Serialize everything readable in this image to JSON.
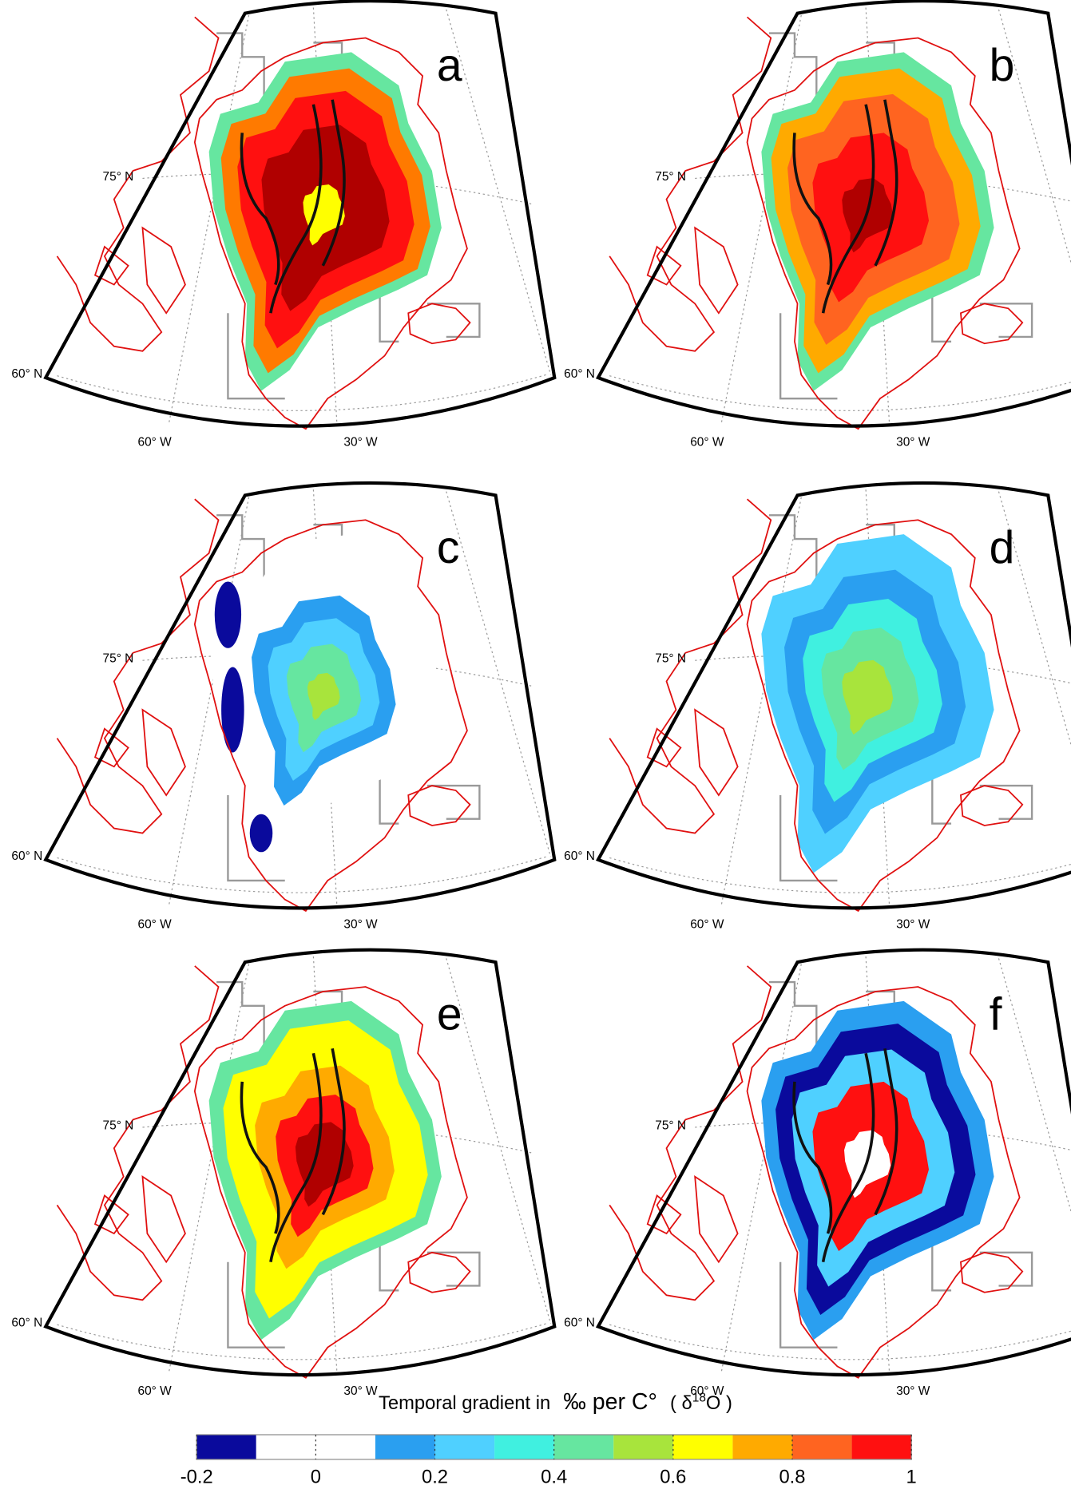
{
  "panels": [
    {
      "label": "a",
      "lat_labels": [
        "75° N",
        "60° N"
      ],
      "lon_labels": [
        "60° W",
        "30° W"
      ]
    },
    {
      "label": "b",
      "lat_labels": [
        "75° N",
        "60° N"
      ],
      "lon_labels": [
        "60° W",
        "30° W"
      ]
    },
    {
      "label": "c",
      "lat_labels": [
        "75° N",
        "60° N"
      ],
      "lon_labels": [
        "60° W",
        "30° W"
      ]
    },
    {
      "label": "d",
      "lat_labels": [
        "75° N",
        "60° N"
      ],
      "lon_labels": [
        "60° W",
        "30° W"
      ]
    },
    {
      "label": "e",
      "lat_labels": [
        "75° N",
        "60° N"
      ],
      "lon_labels": [
        "60° W",
        "30° W"
      ]
    },
    {
      "label": "f",
      "lat_labels": [
        "75° N",
        "60° N"
      ],
      "lon_labels": [
        "60° W",
        "30° W"
      ]
    }
  ],
  "colorbar": {
    "title": "Temporal gradient in",
    "unit": "‰ per C°",
    "quantity_prefix": "( δ",
    "quantity_sup": "18",
    "quantity_suffix": "O )",
    "range": [
      -0.2,
      1
    ],
    "bins": [
      -0.2,
      -0.1,
      0,
      0.1,
      0.2,
      0.3,
      0.4,
      0.5,
      0.6,
      0.7,
      0.8,
      0.9,
      1
    ],
    "colors": [
      "#0a0a9c",
      "#ffffff",
      "#ffffff",
      "#2a9ff0",
      "#4fd0ff",
      "#40f0e0",
      "#66e6a0",
      "#a8e43c",
      "#ffff00",
      "#ffaa00",
      "#ff6420",
      "#ff1010",
      "#b00000"
    ],
    "ticks": [
      -0.2,
      0,
      0.2,
      0.4,
      0.6,
      0.8,
      1
    ]
  }
}
